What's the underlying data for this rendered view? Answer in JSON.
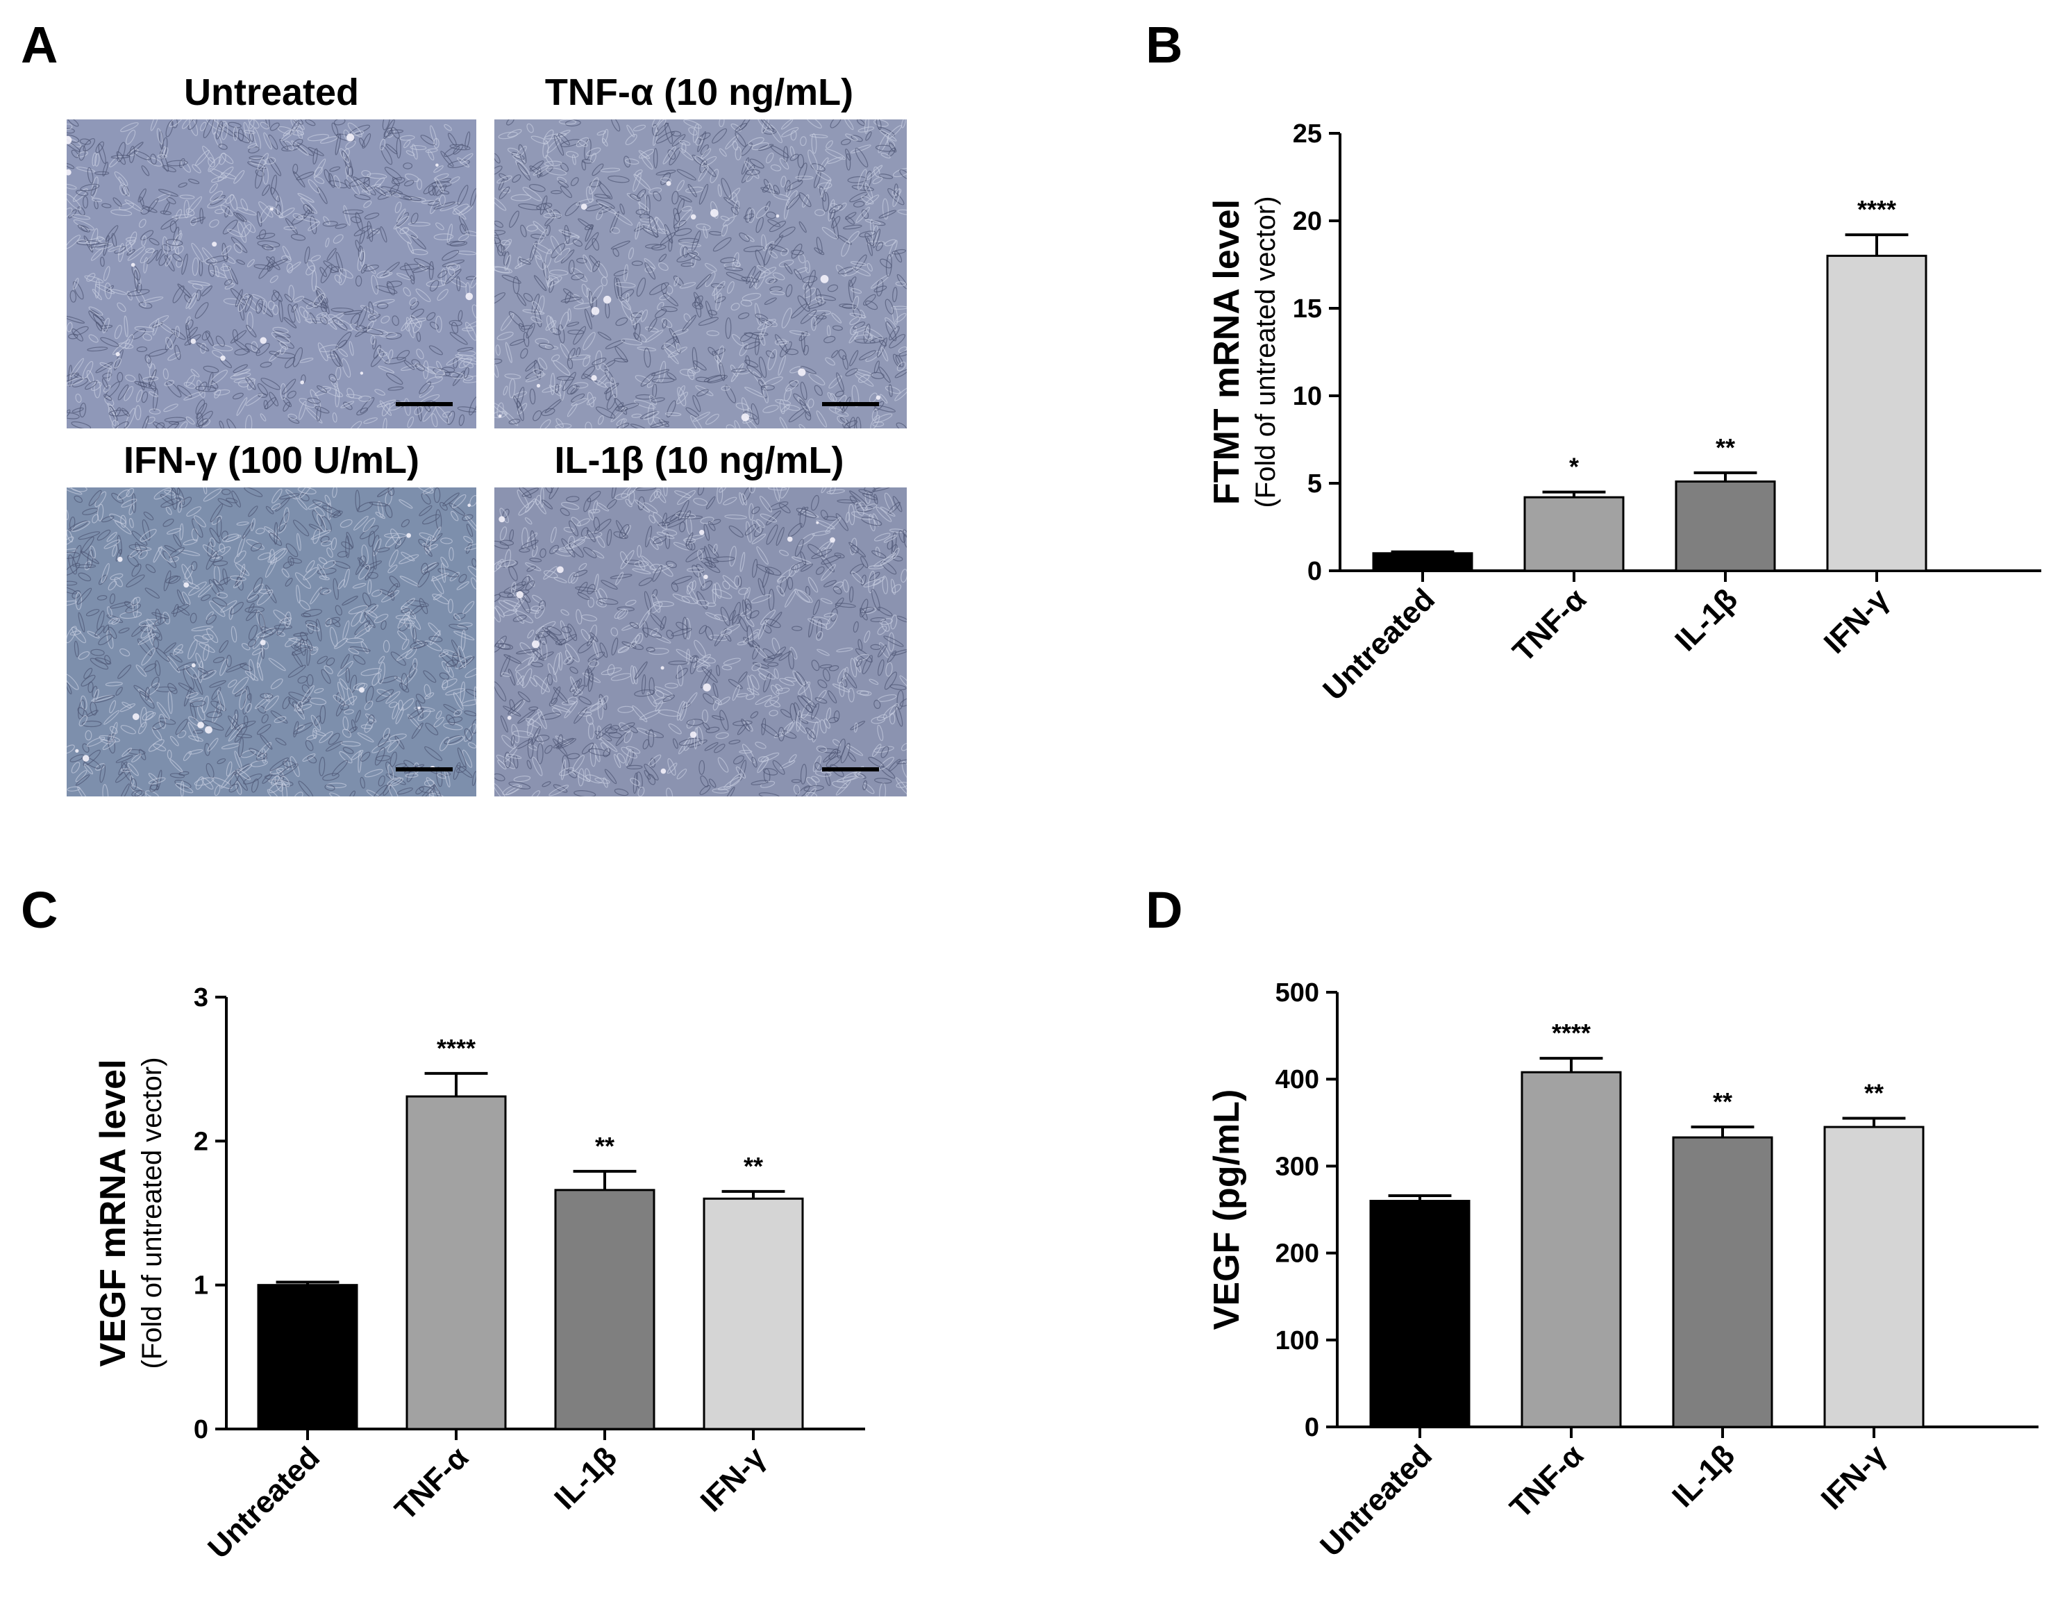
{
  "panels": {
    "a": "A",
    "b": "B",
    "c": "C",
    "d": "D"
  },
  "micrographs": [
    {
      "title": "Untreated",
      "tint": "#8f98b8"
    },
    {
      "title": "TNF-α (10 ng/mL)",
      "tint": "#9199b6"
    },
    {
      "title": "IFN-γ (100 U/mL)",
      "tint": "#7d8fac"
    },
    {
      "title": "IL-1β (10 ng/mL)",
      "tint": "#8b93b0"
    }
  ],
  "chart_data": [
    {
      "panel": "B",
      "type": "bar",
      "ylabel": "FTMT mRNA level",
      "ylabel_sub": "(Fold of untreated vector)",
      "categories": [
        "Untreated",
        "TNF-α",
        "IL-1β",
        "IFN-γ"
      ],
      "values": [
        1.0,
        4.2,
        5.1,
        18.0
      ],
      "errors": [
        0.08,
        0.3,
        0.5,
        1.2
      ],
      "significance": [
        "",
        "*",
        "**",
        "****"
      ],
      "ylim": [
        0,
        25
      ],
      "yticks": [
        0,
        5,
        10,
        15,
        20,
        25
      ],
      "colors": [
        "#000000",
        "#a2a2a2",
        "#7f7f7f",
        "#d5d5d5"
      ]
    },
    {
      "panel": "C",
      "type": "bar",
      "ylabel": "VEGF mRNA level",
      "ylabel_sub": "(Fold of untreated vector)",
      "categories": [
        "Untreated",
        "TNF-α",
        "IL-1β",
        "IFN-γ"
      ],
      "values": [
        1.0,
        2.31,
        1.66,
        1.6
      ],
      "errors": [
        0.02,
        0.16,
        0.13,
        0.05
      ],
      "significance": [
        "",
        "****",
        "**",
        "**"
      ],
      "ylim": [
        0,
        3
      ],
      "yticks": [
        0,
        1,
        2,
        3
      ],
      "colors": [
        "#000000",
        "#a2a2a2",
        "#7f7f7f",
        "#d5d5d5"
      ]
    },
    {
      "panel": "D",
      "type": "bar",
      "ylabel": "VEGF (pg/mL)",
      "ylabel_sub": "",
      "categories": [
        "Untreated",
        "TNF-α",
        "IL-1β",
        "IFN-γ"
      ],
      "values": [
        260,
        408,
        333,
        345
      ],
      "errors": [
        6,
        16,
        12,
        10
      ],
      "significance": [
        "",
        "****",
        "**",
        "**"
      ],
      "ylim": [
        0,
        500
      ],
      "yticks": [
        0,
        100,
        200,
        300,
        400,
        500
      ],
      "colors": [
        "#000000",
        "#a2a2a2",
        "#7f7f7f",
        "#d5d5d5"
      ]
    }
  ]
}
